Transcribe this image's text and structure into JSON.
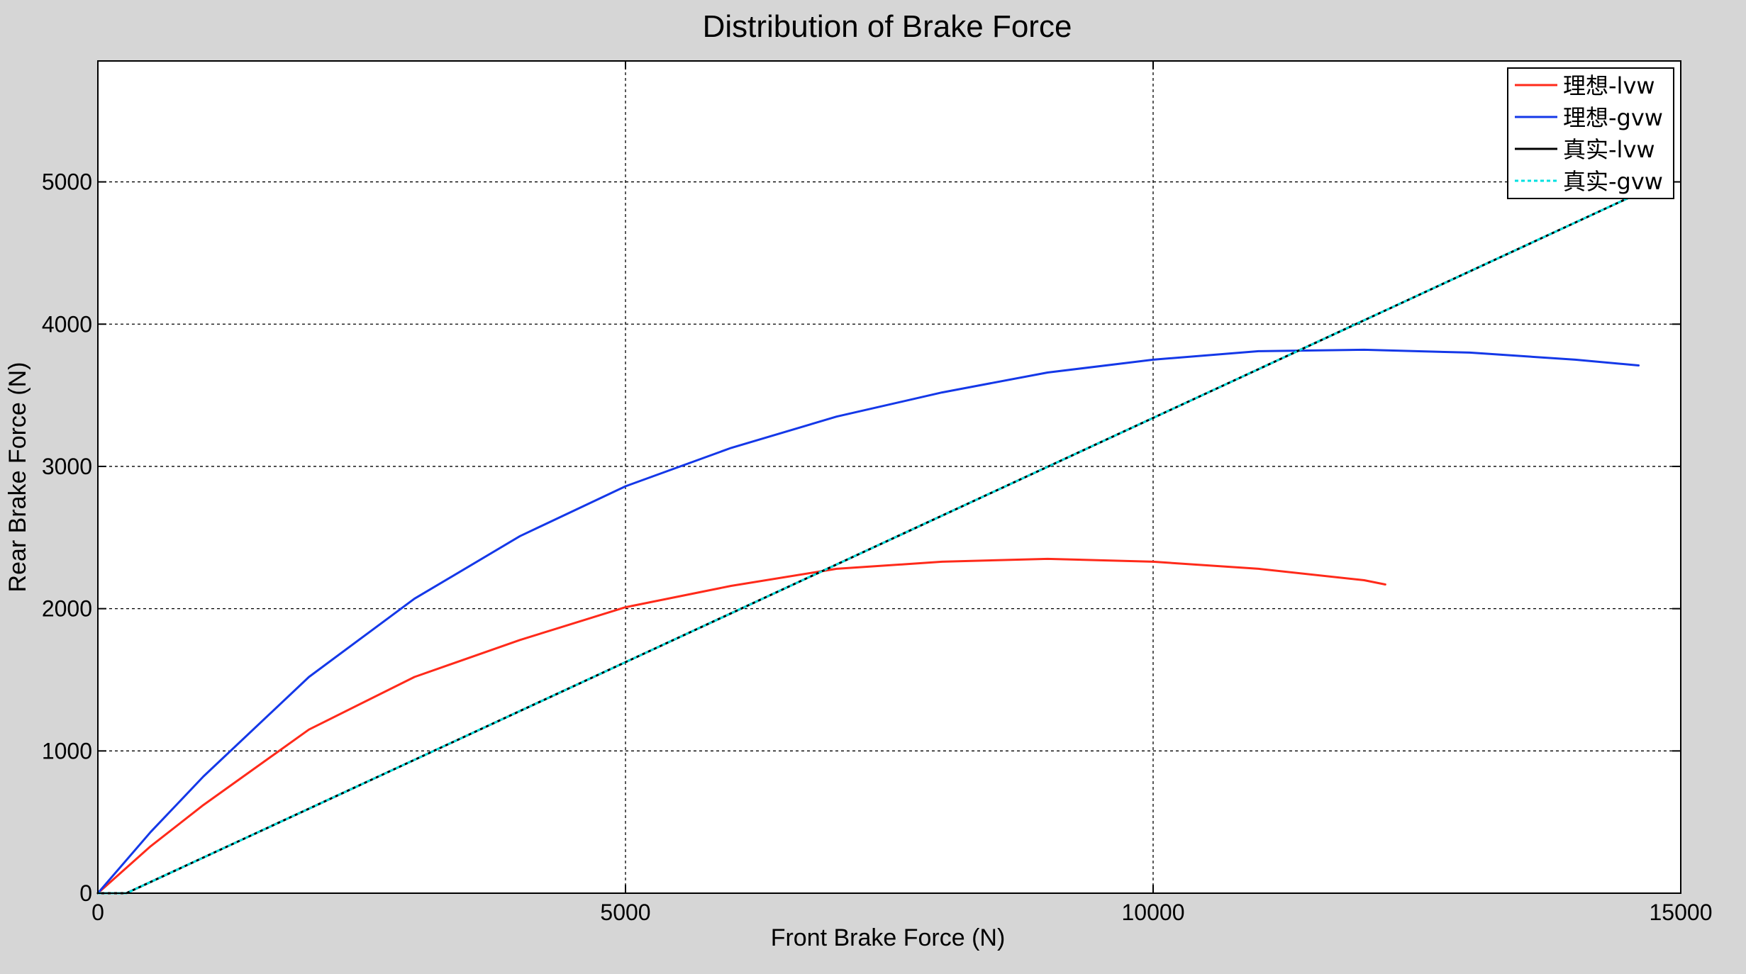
{
  "chart_data": {
    "type": "line",
    "title": "Distribution of Brake Force",
    "xlabel": "Front Brake Force (N)",
    "ylabel": "Rear Brake Force (N)",
    "xlim": [
      0,
      15000
    ],
    "ylim": [
      0,
      5850
    ],
    "xticks": [
      0,
      5000,
      10000,
      15000
    ],
    "yticks": [
      0,
      1000,
      2000,
      3000,
      4000,
      5000
    ],
    "grid": true,
    "legend_position": "top-right",
    "series": [
      {
        "name": "理想-lvw",
        "color": "#ff2a1a",
        "style": "solid",
        "points": [
          [
            0,
            0
          ],
          [
            500,
            330
          ],
          [
            1000,
            620
          ],
          [
            2000,
            1150
          ],
          [
            3000,
            1520
          ],
          [
            4000,
            1780
          ],
          [
            5000,
            2010
          ],
          [
            6000,
            2160
          ],
          [
            7000,
            2280
          ],
          [
            8000,
            2330
          ],
          [
            9000,
            2350
          ],
          [
            10000,
            2330
          ],
          [
            11000,
            2280
          ],
          [
            12000,
            2200
          ],
          [
            12200,
            2170
          ]
        ]
      },
      {
        "name": "理想-gvw",
        "color": "#1438e8",
        "style": "solid",
        "points": [
          [
            0,
            0
          ],
          [
            500,
            430
          ],
          [
            1000,
            820
          ],
          [
            2000,
            1520
          ],
          [
            3000,
            2070
          ],
          [
            4000,
            2510
          ],
          [
            5000,
            2860
          ],
          [
            6000,
            3130
          ],
          [
            7000,
            3350
          ],
          [
            8000,
            3520
          ],
          [
            9000,
            3660
          ],
          [
            10000,
            3750
          ],
          [
            11000,
            3810
          ],
          [
            12000,
            3820
          ],
          [
            13000,
            3800
          ],
          [
            14000,
            3750
          ],
          [
            14600,
            3710
          ]
        ]
      },
      {
        "name": "真实-lvw",
        "color": "#000000",
        "style": "solid",
        "points": [
          [
            0,
            0
          ],
          [
            270,
            0
          ],
          [
            14600,
            4920
          ]
        ]
      },
      {
        "name": "真实-gvw",
        "color": "#00e0e0",
        "style": "dashed",
        "points": [
          [
            0,
            0
          ],
          [
            270,
            0
          ],
          [
            14600,
            4920
          ]
        ]
      }
    ]
  }
}
